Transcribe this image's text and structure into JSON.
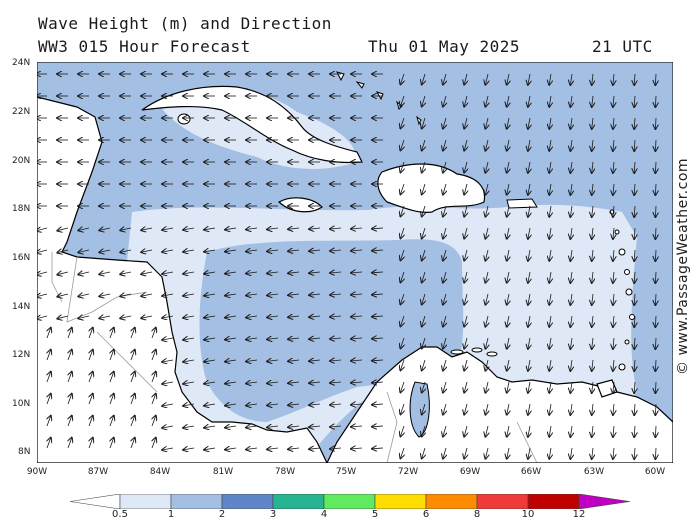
{
  "title": {
    "line1": "Wave Height (m) and Direction",
    "model": "WW3 015 Hour Forecast",
    "date": "Thu 01 May 2025",
    "time": "21 UTC"
  },
  "credit": "© www.PassageWeather.com",
  "map": {
    "lat_labels": [
      "24N",
      "22N",
      "20N",
      "18N",
      "16N",
      "14N",
      "12N",
      "10N",
      "8N"
    ],
    "lon_labels": [
      "90W",
      "87W",
      "84W",
      "81W",
      "78W",
      "75W",
      "72W",
      "69W",
      "66W",
      "63W",
      "60W"
    ],
    "lat_range": [
      7.5,
      24
    ],
    "lon_range": [
      -90,
      -59.5
    ],
    "colors": {
      "sea_high": "#a4bfe4",
      "sea_low": "#dfe8f6",
      "land": "#ffffff",
      "coast": "#000000",
      "border": "#9a9a9a",
      "arrow": "#1a1a1a"
    }
  },
  "legend": {
    "ticks": [
      "0.5",
      "1",
      "2",
      "3",
      "4",
      "5",
      "6",
      "8",
      "10",
      "12"
    ],
    "colors": [
      "#ffffff",
      "#dfe8f6",
      "#a4bfe4",
      "#5f86c9",
      "#26b590",
      "#5fea5f",
      "#ffdd00",
      "#ff8c00",
      "#ef3a3a",
      "#c00000",
      "#c000c0"
    ]
  }
}
